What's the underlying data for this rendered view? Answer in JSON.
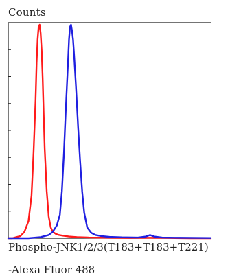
{
  "chart_data": {
    "type": "line",
    "ylabel": "Counts",
    "xlabel_line1": "Phospho-JNK1/2/3(T183+T183+T221)",
    "xlabel_line2": "-Alexa Fluor 488",
    "xlim": [
      0,
      1000
    ],
    "ylim": [
      0,
      100
    ],
    "x_ticks": 0,
    "y_ticks": 8,
    "grid": false,
    "legend": "none",
    "series": [
      {
        "color": "#ff1a1a",
        "x": [
          0,
          20,
          40,
          60,
          80,
          100,
          115,
          125,
          135,
          140,
          145,
          150,
          155,
          160,
          165,
          170,
          175,
          180,
          190,
          200,
          210,
          220,
          235,
          250,
          270,
          300,
          340,
          400,
          500,
          600,
          700,
          800,
          900,
          1000
        ],
        "y": [
          0,
          0,
          0.5,
          1,
          3,
          8,
          20,
          40,
          65,
          82,
          93,
          99,
          100,
          96,
          88,
          75,
          58,
          42,
          22,
          10,
          5,
          3,
          2,
          1.5,
          1.2,
          0.8,
          0.5,
          0.3,
          0.2,
          0.1,
          0.2,
          0.1,
          0,
          0
        ]
      },
      {
        "color": "#1f1fe0",
        "x": [
          0,
          100,
          160,
          200,
          220,
          240,
          255,
          265,
          275,
          285,
          295,
          300,
          305,
          310,
          315,
          320,
          325,
          335,
          345,
          355,
          365,
          375,
          390,
          410,
          430,
          460,
          500,
          560,
          640,
          680,
          700,
          720,
          760,
          850,
          1000
        ],
        "y": [
          0,
          0,
          0.5,
          1.5,
          3,
          6,
          11,
          22,
          40,
          62,
          82,
          93,
          99,
          100,
          97,
          93,
          86,
          70,
          52,
          36,
          22,
          12,
          5,
          2.5,
          1.5,
          1,
          0.6,
          0.4,
          0.3,
          0.8,
          1.5,
          0.8,
          0.3,
          0.2,
          0.1
        ]
      }
    ]
  }
}
